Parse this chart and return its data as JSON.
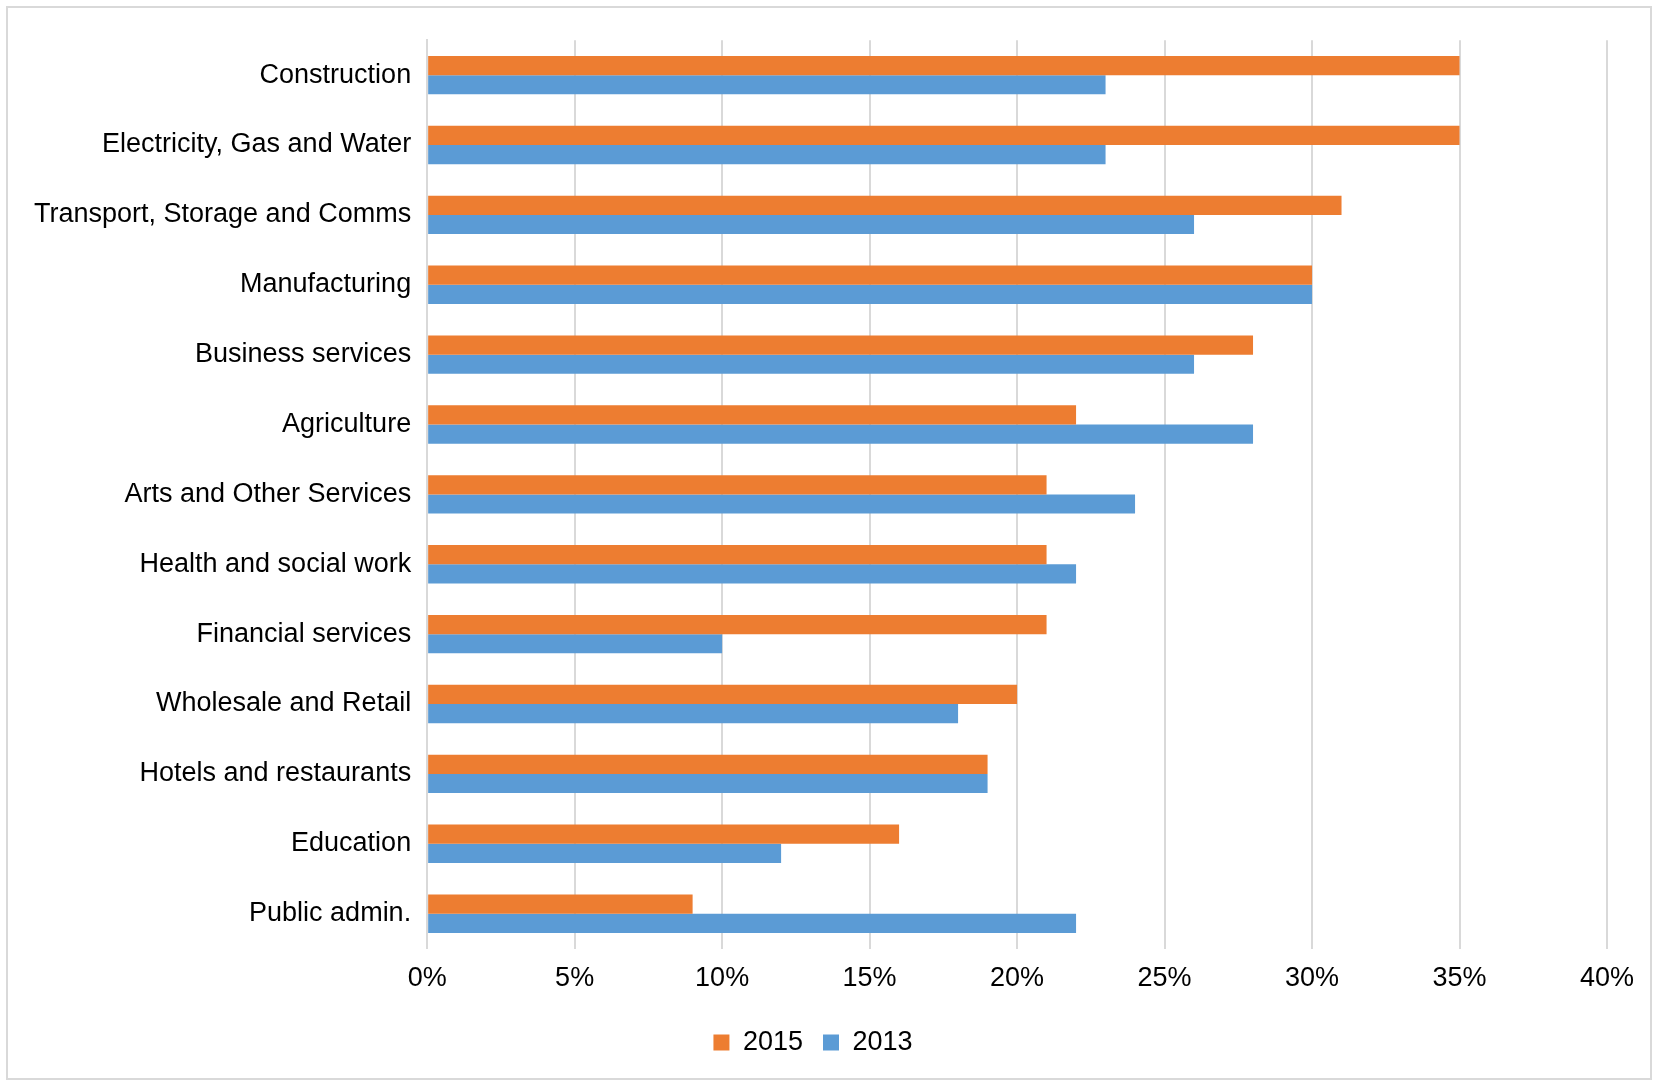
{
  "chart_data": {
    "type": "bar",
    "orientation": "horizontal",
    "categories": [
      "Construction",
      "Electricity, Gas and Water",
      "Transport, Storage and Comms",
      "Manufacturing",
      "Business services",
      "Agriculture",
      "Arts and Other Services",
      "Health and social work",
      "Financial services",
      "Wholesale and Retail",
      "Hotels and restaurants",
      "Education",
      "Public admin."
    ],
    "series": [
      {
        "name": "2015",
        "color": "#ed7d31",
        "values": [
          35,
          35,
          31,
          30,
          28,
          22,
          21,
          21,
          21,
          20,
          19,
          16,
          9
        ]
      },
      {
        "name": "2013",
        "color": "#5b9bd5",
        "values": [
          23,
          23,
          26,
          30,
          26,
          28,
          24,
          22,
          10,
          18,
          19,
          12,
          22
        ]
      }
    ],
    "xlim": [
      0,
      40
    ],
    "xticks": [
      {
        "value": 0,
        "label": "0%"
      },
      {
        "value": 5,
        "label": "5%"
      },
      {
        "value": 10,
        "label": "10%"
      },
      {
        "value": 15,
        "label": "15%"
      },
      {
        "value": 20,
        "label": "20%"
      },
      {
        "value": 25,
        "label": "25%"
      },
      {
        "value": 30,
        "label": "30%"
      },
      {
        "value": 35,
        "label": "35%"
      },
      {
        "value": 40,
        "label": "40%"
      }
    ],
    "grid": "x",
    "legend": "bottom"
  }
}
